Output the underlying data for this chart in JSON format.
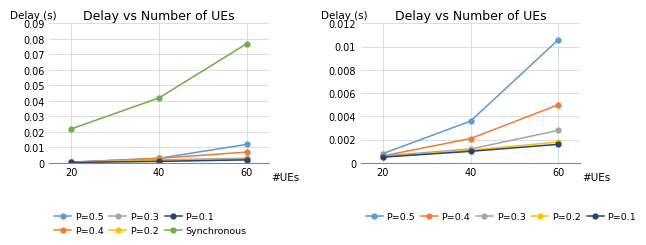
{
  "x": [
    20,
    40,
    60
  ],
  "title": "Delay vs Number of UEs",
  "xlabel": "#UEs",
  "ylabel": "Delay (s)",
  "left": {
    "series": {
      "P=0.5": [
        0.0005,
        0.003,
        0.012
      ],
      "P=0.4": [
        0.0005,
        0.003,
        0.007
      ],
      "P=0.3": [
        0.0005,
        0.002,
        0.003
      ],
      "P=0.2": [
        0.0004,
        0.0015,
        0.002
      ],
      "P=0.1": [
        0.0003,
        0.001,
        0.002
      ],
      "Synchronous": [
        0.022,
        0.042,
        0.077
      ]
    },
    "colors": {
      "P=0.5": "#5B9BD5",
      "P=0.4": "#ED7D31",
      "P=0.3": "#A5A5A5",
      "P=0.2": "#FFC000",
      "P=0.1": "#264478",
      "Synchronous": "#70AD47"
    },
    "ylim": [
      0,
      0.09
    ],
    "yticks": [
      0,
      0.01,
      0.02,
      0.03,
      0.04,
      0.05,
      0.06,
      0.07,
      0.08,
      0.09
    ]
  },
  "right": {
    "series": {
      "P=0.5": [
        0.0008,
        0.0036,
        0.0106
      ],
      "P=0.4": [
        0.0006,
        0.0021,
        0.005
      ],
      "P=0.3": [
        0.0006,
        0.0012,
        0.0028
      ],
      "P=0.2": [
        0.0005,
        0.0011,
        0.0018
      ],
      "P=0.1": [
        0.0005,
        0.001,
        0.0016
      ]
    },
    "colors": {
      "P=0.5": "#5B9BD5",
      "P=0.4": "#ED7D31",
      "P=0.3": "#A5A5A5",
      "P=0.2": "#FFC000",
      "P=0.1": "#264478"
    },
    "ylim": [
      0,
      0.012
    ],
    "yticks": [
      0,
      0.002,
      0.004,
      0.006,
      0.008,
      0.01,
      0.012
    ]
  },
  "legend_left": [
    [
      "P=0.5",
      "#5B9BD5"
    ],
    [
      "P=0.4",
      "#ED7D31"
    ],
    [
      "P=0.3",
      "#A5A5A5"
    ],
    [
      "P=0.2",
      "#FFC000"
    ],
    [
      "P=0.1",
      "#264478"
    ],
    [
      "Synchronous",
      "#70AD47"
    ]
  ],
  "legend_right": [
    [
      "P=0.5",
      "#5B9BD5"
    ],
    [
      "P=0.4",
      "#ED7D31"
    ],
    [
      "P=0.3",
      "#A5A5A5"
    ],
    [
      "P=0.2",
      "#FFC000"
    ],
    [
      "P=0.1",
      "#264478"
    ]
  ]
}
